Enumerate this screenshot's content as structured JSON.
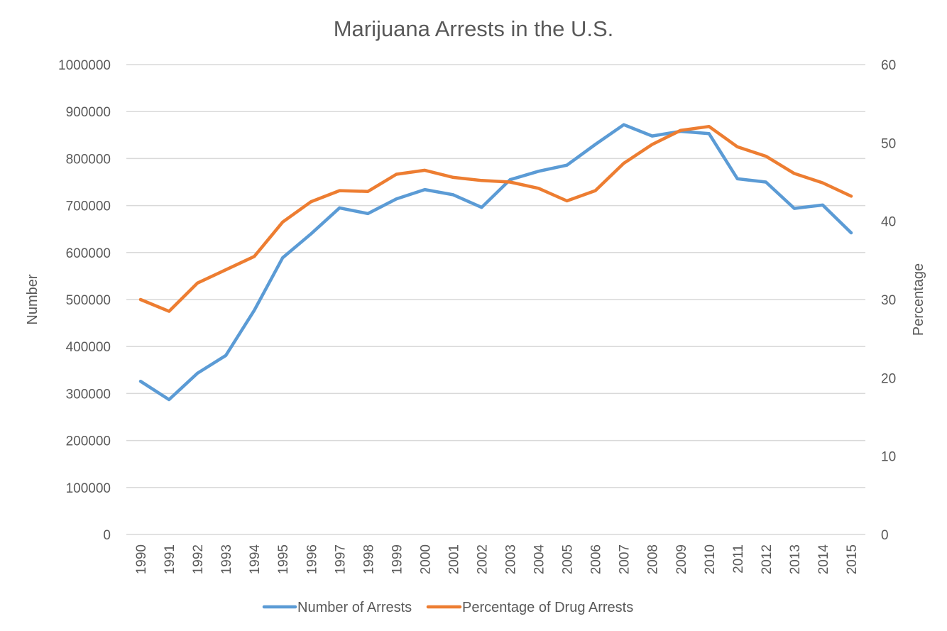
{
  "chart_data": {
    "type": "line",
    "title": "Marijuana Arrests in the U.S.",
    "xlabel": "",
    "ylabel": "Number",
    "y2label": "Percentage",
    "ylim": [
      0,
      1000000
    ],
    "y2lim": [
      0,
      60
    ],
    "yticks": [
      "0",
      "100000",
      "200000",
      "300000",
      "400000",
      "500000",
      "600000",
      "700000",
      "800000",
      "900000",
      "1000000"
    ],
    "y2ticks": [
      "0",
      "10",
      "20",
      "30",
      "40",
      "50",
      "60"
    ],
    "grid": true,
    "legend_position": "bottom",
    "categories": [
      "1990",
      "1991",
      "1992",
      "1993",
      "1994",
      "1995",
      "1996",
      "1997",
      "1998",
      "1999",
      "2000",
      "2001",
      "2002",
      "2003",
      "2004",
      "2005",
      "2006",
      "2007",
      "2008",
      "2009",
      "2010",
      "2011",
      "2012",
      "2013",
      "2014",
      "2015"
    ],
    "series": [
      {
        "name": "Number of Arrests",
        "axis": "left",
        "color": "#5b9bd5",
        "values": [
          326000,
          287000,
          343000,
          381000,
          477000,
          589000,
          640000,
          695000,
          683000,
          714000,
          734000,
          723000,
          696000,
          755000,
          773000,
          786000,
          830000,
          872000,
          848000,
          858000,
          853000,
          757000,
          750000,
          694000,
          701000,
          642000
        ]
      },
      {
        "name": "Percentage of Drug Arrests",
        "axis": "right",
        "color": "#ed7d31",
        "values": [
          30.0,
          28.5,
          32.1,
          33.8,
          35.5,
          39.9,
          42.5,
          43.9,
          43.8,
          46.0,
          46.5,
          45.6,
          45.2,
          45.0,
          44.2,
          42.6,
          43.9,
          47.4,
          49.8,
          51.6,
          52.1,
          49.5,
          48.3,
          46.1,
          44.9,
          43.2
        ]
      }
    ]
  }
}
